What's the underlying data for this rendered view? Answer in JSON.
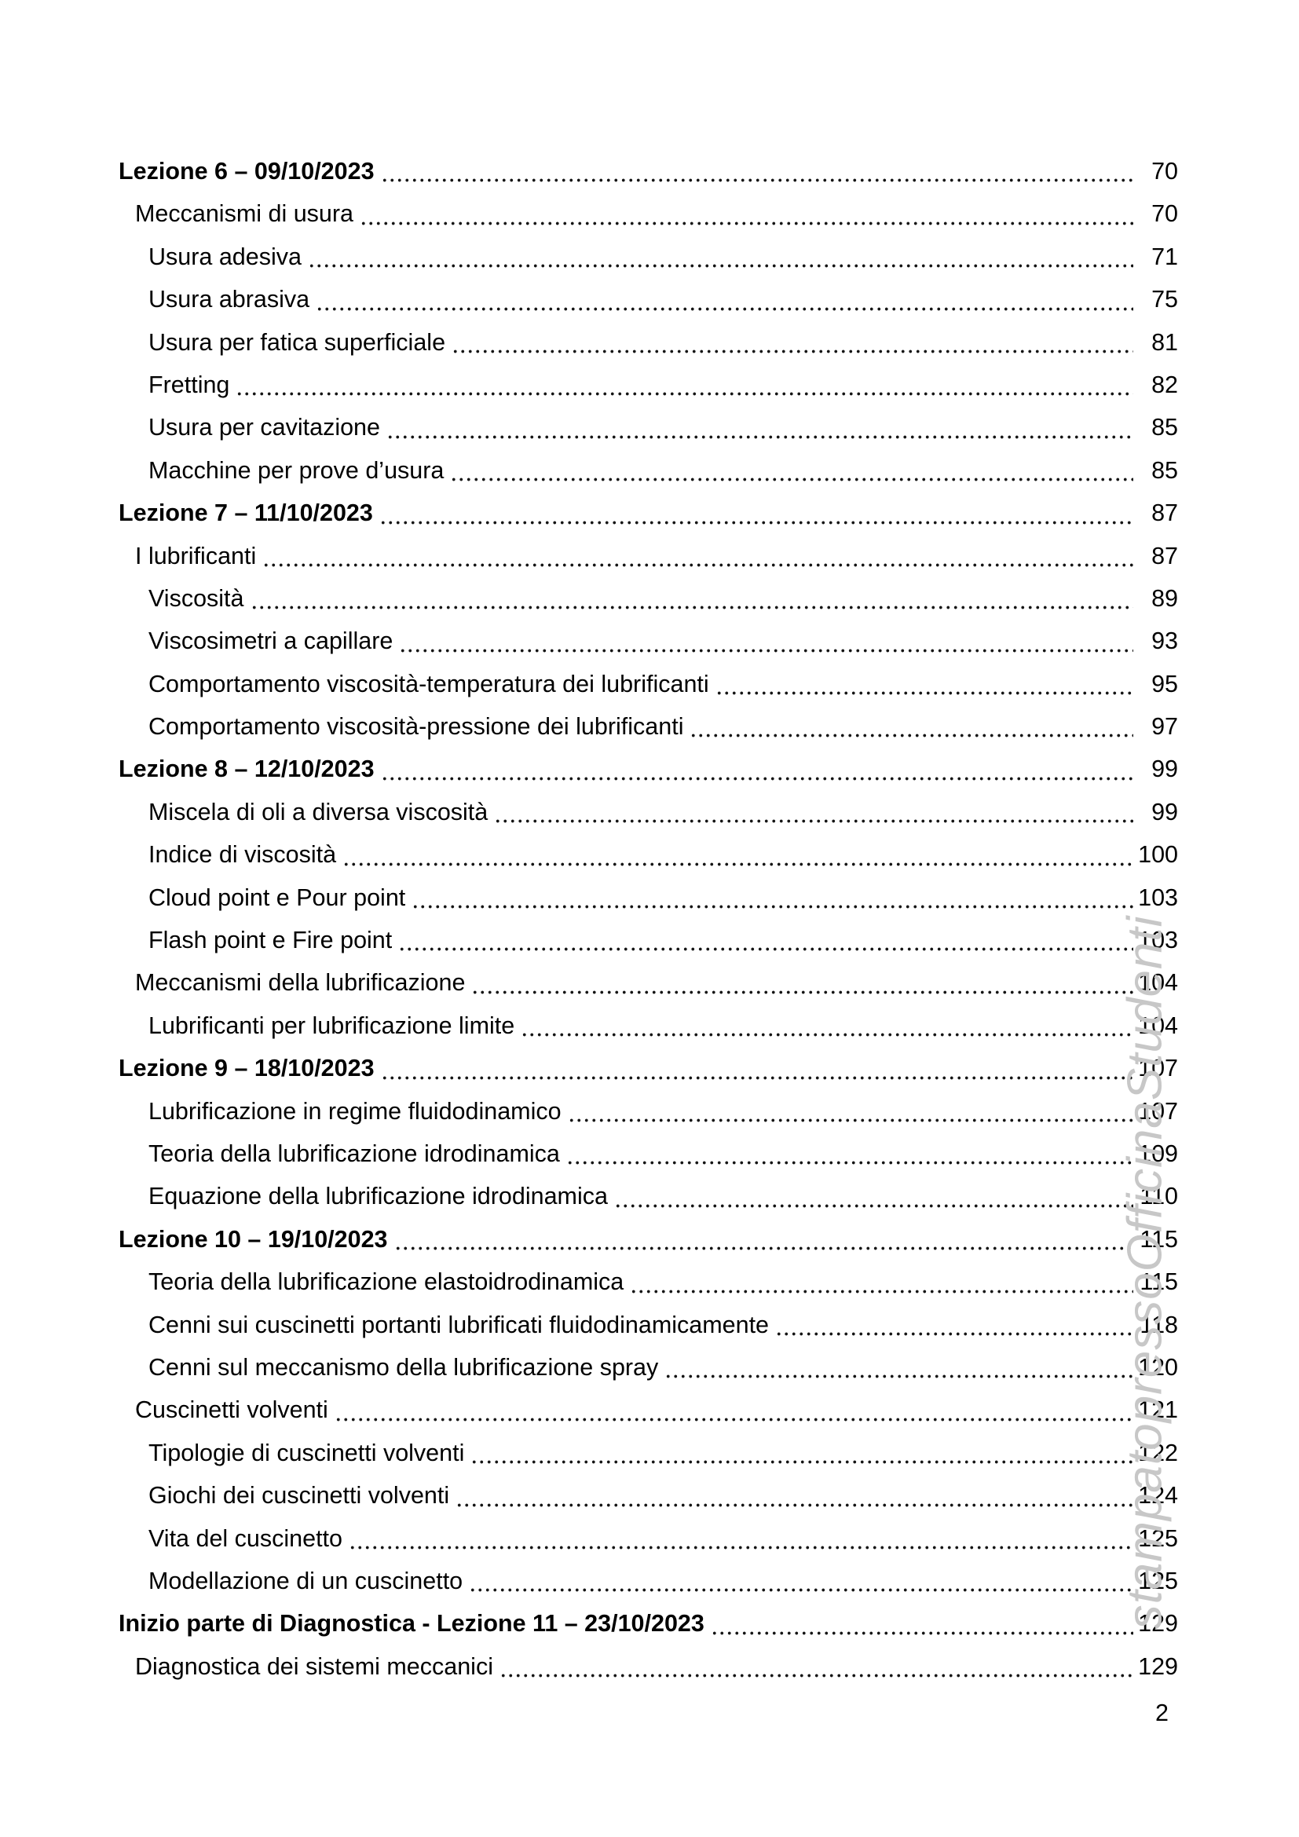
{
  "page": {
    "number": "2",
    "watermark": "stampatopressoOfficinaStudenti"
  },
  "colors": {
    "text": "#000000",
    "leader_dots": "#141414",
    "watermark": "#c7c7c7",
    "background": "#ffffff"
  },
  "toc": {
    "entries": [
      {
        "label": "Lezione 6 – 09/10/2023",
        "page": "70",
        "level": 1
      },
      {
        "label": "Meccanismi di usura",
        "page": "70",
        "level": 2
      },
      {
        "label": "Usura adesiva",
        "page": "71",
        "level": 3
      },
      {
        "label": "Usura abrasiva",
        "page": "75",
        "level": 3
      },
      {
        "label": "Usura per fatica superficiale",
        "page": "81",
        "level": 3
      },
      {
        "label": "Fretting",
        "page": "82",
        "level": 3
      },
      {
        "label": "Usura per cavitazione",
        "page": "85",
        "level": 3
      },
      {
        "label": "Macchine per prove d’usura",
        "page": "85",
        "level": 3
      },
      {
        "label": "Lezione 7 – 11/10/2023",
        "page": "87",
        "level": 1
      },
      {
        "label": "I lubrificanti",
        "page": "87",
        "level": 2
      },
      {
        "label": "Viscosità",
        "page": "89",
        "level": 3
      },
      {
        "label": "Viscosimetri a capillare",
        "page": "93",
        "level": 3
      },
      {
        "label": "Comportamento viscosità-temperatura dei lubrificanti",
        "page": "95",
        "level": 3
      },
      {
        "label": "Comportamento viscosità-pressione dei lubrificanti",
        "page": "97",
        "level": 3
      },
      {
        "label": "Lezione 8 – 12/10/2023",
        "page": "99",
        "level": 1
      },
      {
        "label": "Miscela di oli a diversa viscosità",
        "page": "99",
        "level": 3
      },
      {
        "label": "Indice di viscosità",
        "page": "100",
        "level": 3
      },
      {
        "label": "Cloud point e Pour point",
        "page": "103",
        "level": 3
      },
      {
        "label": "Flash point e Fire point",
        "page": "103",
        "level": 3
      },
      {
        "label": "Meccanismi della lubrificazione",
        "page": "104",
        "level": 2
      },
      {
        "label": "Lubrificanti per lubrificazione limite",
        "page": "104",
        "level": 3
      },
      {
        "label": "Lezione 9 – 18/10/2023",
        "page": "107",
        "level": 1
      },
      {
        "label": "Lubrificazione in regime fluidodinamico",
        "page": "107",
        "level": 3
      },
      {
        "label": "Teoria della lubrificazione idrodinamica",
        "page": "109",
        "level": 3
      },
      {
        "label": "Equazione della lubrificazione idrodinamica",
        "page": "110",
        "level": 3
      },
      {
        "label": "Lezione 10 – 19/10/2023",
        "page": "115",
        "level": 1
      },
      {
        "label": "Teoria della lubrificazione elastoidrodinamica",
        "page": "115",
        "level": 3
      },
      {
        "label": "Cenni sui cuscinetti portanti lubrificati fluidodinamicamente",
        "page": "118",
        "level": 3
      },
      {
        "label": "Cenni sul meccanismo della lubrificazione spray",
        "page": "120",
        "level": 3
      },
      {
        "label": "Cuscinetti volventi",
        "page": "121",
        "level": 2
      },
      {
        "label": "Tipologie di cuscinetti volventi",
        "page": "122",
        "level": 3
      },
      {
        "label": "Giochi dei cuscinetti volventi",
        "page": "124",
        "level": 3
      },
      {
        "label": "Vita del cuscinetto",
        "page": "125",
        "level": 3
      },
      {
        "label": "Modellazione di un cuscinetto",
        "page": "125",
        "level": 3
      },
      {
        "label": "Inizio parte di Diagnostica - Lezione 11 – 23/10/2023",
        "page": "129",
        "level": 1
      },
      {
        "label": "Diagnostica dei sistemi meccanici",
        "page": "129",
        "level": 2
      }
    ]
  }
}
